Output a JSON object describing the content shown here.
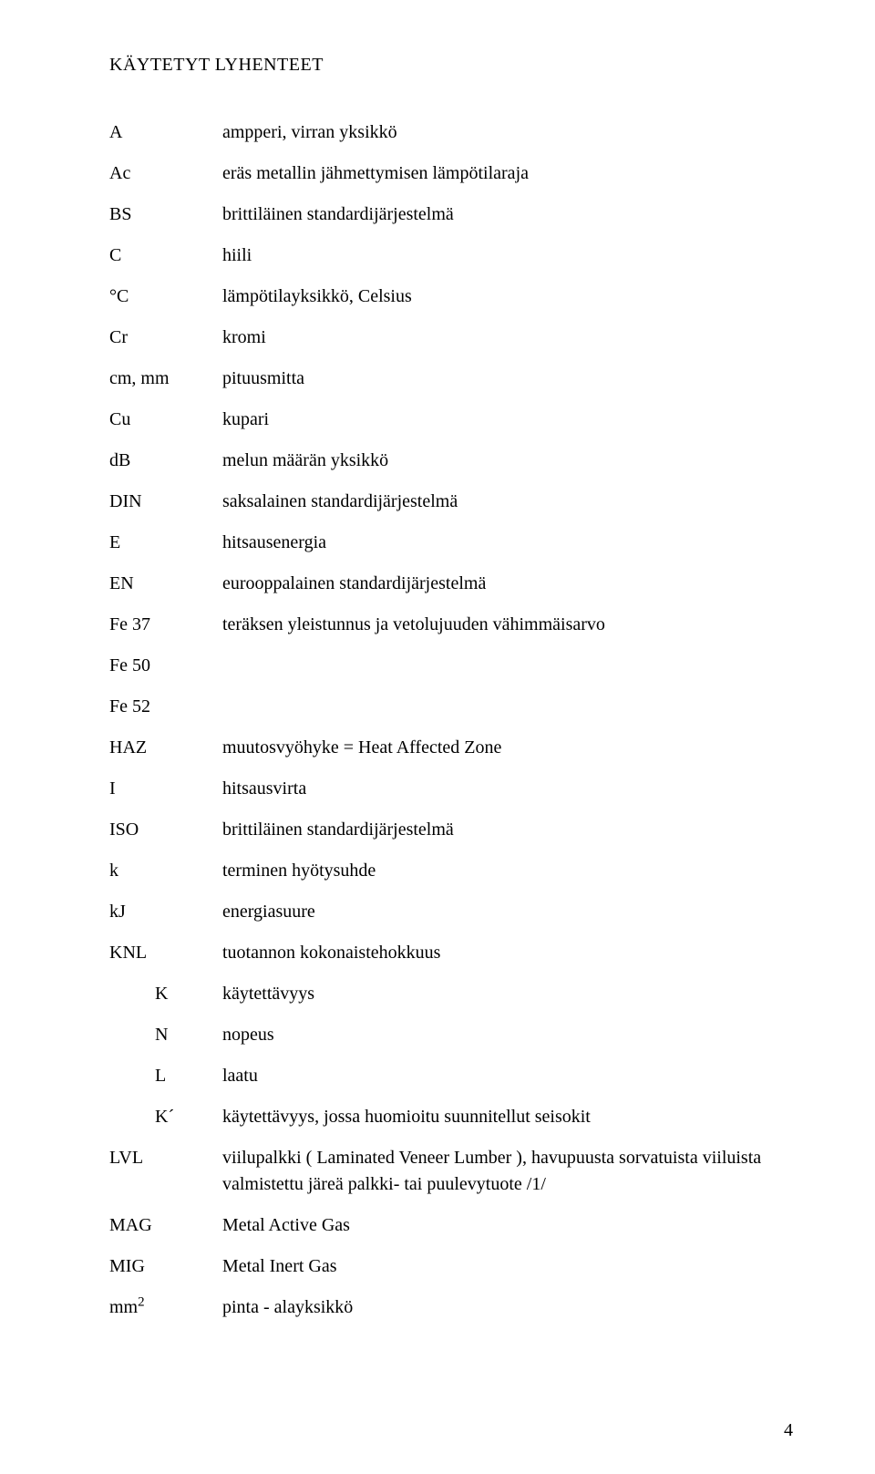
{
  "heading": "KÄYTETYT LYHENTEET",
  "rows": [
    {
      "key": "A",
      "def": "ampperi, virran yksikkö",
      "indent": 0
    },
    {
      "key": "Ac",
      "def": "eräs metallin jähmettymisen lämpötilaraja",
      "indent": 0
    },
    {
      "key": "BS",
      "def": "brittiläinen standardijärjestelmä",
      "indent": 0
    },
    {
      "key": "C",
      "def": "hiili",
      "indent": 0
    },
    {
      "key": "°C",
      "def": "lämpötilayksikkö, Celsius",
      "indent": 0
    },
    {
      "key": "Cr",
      "def": "kromi",
      "indent": 0
    },
    {
      "key": "cm, mm",
      "def": "pituusmitta",
      "indent": 0
    },
    {
      "key": "Cu",
      "def": "kupari",
      "indent": 0
    },
    {
      "key": "dB",
      "def": "melun määrän yksikkö",
      "indent": 0
    },
    {
      "key": "DIN",
      "def": "saksalainen standardijärjestelmä",
      "indent": 0
    },
    {
      "key": "E",
      "def": "hitsausenergia",
      "indent": 0
    },
    {
      "key": "EN",
      "def": "eurooppalainen standardijärjestelmä",
      "indent": 0
    },
    {
      "key": "Fe 37",
      "def": "teräksen yleistunnus ja vetolujuuden vähimmäisarvo",
      "indent": 0
    },
    {
      "key": "Fe 50",
      "def": "",
      "indent": 0
    },
    {
      "key": "Fe 52",
      "def": "",
      "indent": 0
    },
    {
      "key": "HAZ",
      "def": "muutosvyöhyke = Heat Affected Zone",
      "indent": 0
    },
    {
      "key": "I",
      "def": "hitsausvirta",
      "indent": 0
    },
    {
      "key": "ISO",
      "def": "brittiläinen standardijärjestelmä",
      "indent": 0
    },
    {
      "key": "k",
      "def": "terminen hyötysuhde",
      "indent": 0
    },
    {
      "key": "kJ",
      "def": "energiasuure",
      "indent": 0
    },
    {
      "key": "KNL",
      "def": "tuotannon kokonaistehokkuus",
      "indent": 0
    },
    {
      "key": "K",
      "def": "käytettävyys",
      "indent": 1
    },
    {
      "key": "N",
      "def": "nopeus",
      "indent": 1
    },
    {
      "key": "L",
      "def": "laatu",
      "indent": 1
    },
    {
      "key": "K´",
      "def": "käytettävyys, jossa huomioitu suunnitellut seisokit",
      "indent": 1
    },
    {
      "key": "LVL",
      "def": "viilupalkki ( Laminated Veneer Lumber ), havupuusta sorvatuista viiluista valmistettu järeä palkki- tai puulevytuote /1/",
      "indent": 0
    },
    {
      "key": "MAG",
      "def": "Metal Active Gas",
      "indent": 0
    },
    {
      "key": "MIG",
      "def": "Metal Inert Gas",
      "indent": 0
    },
    {
      "key": "mm2",
      "def": "pinta - alayksikkö",
      "indent": 0,
      "sup": true
    }
  ],
  "pageNumber": "4",
  "typography": {
    "fontFamily": "Times New Roman",
    "fontSize": 20,
    "textColor": "#000000",
    "backgroundColor": "#ffffff"
  },
  "layout": {
    "pageWidth": 960,
    "pageHeight": 1617,
    "keyColumnWidth": 124,
    "indentWidth": 50,
    "rowGap": 16
  }
}
